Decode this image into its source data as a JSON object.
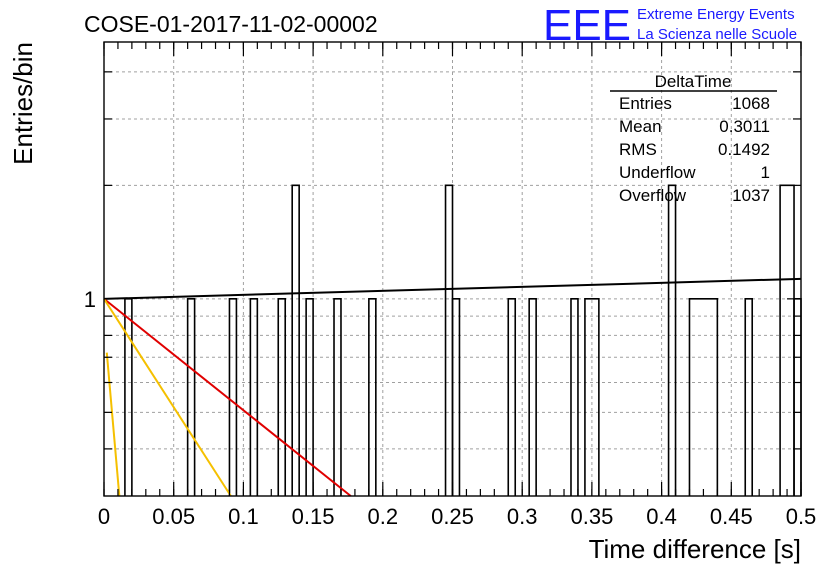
{
  "chart_data": {
    "type": "bar",
    "title": "COSE-01-2017-11-02-00002",
    "xlabel": "Time difference [s]",
    "ylabel": "Entries/bin",
    "xlim": [
      0,
      0.5
    ],
    "ylim_log": [
      0.3,
      4.8
    ],
    "y_scale": "log",
    "grid": true,
    "x_ticks": [
      "0",
      "0.05",
      "0.1",
      "0.15",
      "0.2",
      "0.25",
      "0.3",
      "0.35",
      "0.4",
      "0.45",
      "0.5"
    ],
    "y_ticks": [
      "1"
    ],
    "bins": [
      {
        "x0": 0.015,
        "x1": 0.02,
        "count": 1
      },
      {
        "x0": 0.06,
        "x1": 0.065,
        "count": 1
      },
      {
        "x0": 0.09,
        "x1": 0.095,
        "count": 1
      },
      {
        "x0": 0.105,
        "x1": 0.11,
        "count": 1
      },
      {
        "x0": 0.125,
        "x1": 0.13,
        "count": 1
      },
      {
        "x0": 0.135,
        "x1": 0.14,
        "count": 2
      },
      {
        "x0": 0.145,
        "x1": 0.15,
        "count": 1
      },
      {
        "x0": 0.165,
        "x1": 0.17,
        "count": 1
      },
      {
        "x0": 0.19,
        "x1": 0.195,
        "count": 1
      },
      {
        "x0": 0.245,
        "x1": 0.25,
        "count": 2
      },
      {
        "x0": 0.25,
        "x1": 0.255,
        "count": 1
      },
      {
        "x0": 0.29,
        "x1": 0.295,
        "count": 1
      },
      {
        "x0": 0.305,
        "x1": 0.31,
        "count": 1
      },
      {
        "x0": 0.335,
        "x1": 0.34,
        "count": 1
      },
      {
        "x0": 0.345,
        "x1": 0.355,
        "count": 1
      },
      {
        "x0": 0.405,
        "x1": 0.41,
        "count": 2
      },
      {
        "x0": 0.42,
        "x1": 0.44,
        "count": 1
      },
      {
        "x0": 0.46,
        "x1": 0.465,
        "count": 1
      },
      {
        "x0": 0.485,
        "x1": 0.495,
        "count": 2
      },
      {
        "x0": 0.495,
        "x1": 0.5,
        "count": 1
      }
    ],
    "fit_lines": [
      {
        "color": "#000000",
        "x": [
          0,
          0.5
        ],
        "y": [
          1.0,
          1.13
        ]
      },
      {
        "color": "#e00000",
        "x": [
          0,
          0.177
        ],
        "y": [
          1.0,
          0.3
        ]
      },
      {
        "color": "#f5c000",
        "x": [
          0,
          0.091
        ],
        "y": [
          1.0,
          0.3
        ]
      },
      {
        "color": "#f5c000",
        "x": [
          0.002,
          0.011
        ],
        "y": [
          0.72,
          0.3
        ]
      }
    ],
    "stats_box": {
      "title": "DeltaTime",
      "rows": [
        {
          "label": "Entries",
          "value": "1068"
        },
        {
          "label": "Mean",
          "value": "0.3011"
        },
        {
          "label": "RMS",
          "value": "0.1492"
        },
        {
          "label": "Underflow",
          "value": "1"
        },
        {
          "label": "Overflow",
          "value": "1037"
        }
      ]
    }
  },
  "logo": {
    "text": "EEE",
    "line1": "Extreme Energy Events",
    "line2": "La Scienza nelle Scuole",
    "color": "#1a1aff"
  }
}
